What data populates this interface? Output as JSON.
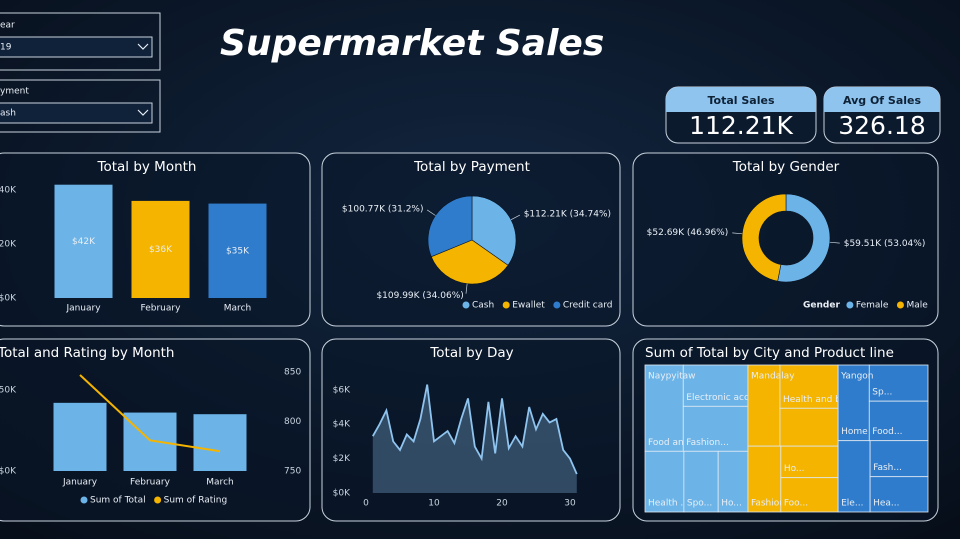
{
  "title": "Supermarket Sales",
  "slicers": [
    {
      "label": "ear",
      "value": "19"
    },
    {
      "label": "yment",
      "value": "ash"
    }
  ],
  "kpis": [
    {
      "label": "Total Sales",
      "value": "112.21K"
    },
    {
      "label": "Avg Of Sales",
      "value": "326.18"
    }
  ],
  "chart_data": [
    {
      "type": "bar",
      "title": "Total by Month",
      "categories": [
        "January",
        "February",
        "March"
      ],
      "values": [
        42000,
        36000,
        35000
      ],
      "value_labels": [
        "$42K",
        "$36K",
        "$35K"
      ],
      "colors": [
        "#6cb4e8",
        "#f4b400",
        "#2f7ccc"
      ],
      "ylim": [
        0,
        43000
      ],
      "yticks": [
        {
          "value": 0,
          "label": "$0K"
        },
        {
          "value": 20000,
          "label": "20K"
        },
        {
          "value": 40000,
          "label": "40K"
        }
      ]
    },
    {
      "type": "pie",
      "title": "Total by Payment",
      "categories": [
        "Cash",
        "Ewallet",
        "Credit card"
      ],
      "values": [
        112210,
        109990,
        100770
      ],
      "value_labels": [
        "$112.21K (34.74%)",
        "$109.99K (34.06%)",
        "$100.77K (31.2%)"
      ],
      "colors": [
        "#6cb4e8",
        "#f4b400",
        "#2f7ccc"
      ]
    },
    {
      "type": "donut",
      "title": "Total by Gender",
      "legend_title": "Gender",
      "categories": [
        "Female",
        "Male"
      ],
      "values": [
        59510,
        52690
      ],
      "value_labels": [
        "$59.51K (53.04%)",
        "$52.69K (46.96%)"
      ],
      "colors": [
        "#6cb4e8",
        "#f4b400"
      ]
    },
    {
      "type": "combo",
      "title": "Total and Rating by Month",
      "categories": [
        "January",
        "February",
        "March"
      ],
      "series": [
        {
          "name": "Sum of Total",
          "kind": "bar",
          "color": "#6cb4e8",
          "values": [
            42000,
            36000,
            35000
          ]
        },
        {
          "name": "Sum of Rating",
          "kind": "line",
          "color": "#f4b400",
          "axis": "y2",
          "values": [
            847,
            781,
            770
          ]
        }
      ],
      "ylim": [
        0,
        61000
      ],
      "yticks": [
        {
          "value": 0,
          "label": "$0K"
        },
        {
          "value": 50000,
          "label": "50K"
        }
      ],
      "y2lim": [
        750,
        850
      ],
      "y2ticks": [
        750,
        800,
        850
      ]
    },
    {
      "type": "area",
      "title": "Total by Day",
      "x": [
        1,
        2,
        3,
        4,
        5,
        6,
        7,
        8,
        9,
        10,
        11,
        12,
        13,
        14,
        15,
        16,
        17,
        18,
        19,
        20,
        21,
        22,
        23,
        24,
        25,
        26,
        27,
        28,
        29,
        30,
        31
      ],
      "values": [
        3300,
        4000,
        4800,
        3000,
        2500,
        3400,
        3000,
        4300,
        6300,
        3000,
        3300,
        3600,
        2900,
        4300,
        5500,
        2700,
        2000,
        5300,
        2300,
        5500,
        2600,
        3300,
        2700,
        5000,
        3700,
        4600,
        4100,
        4300,
        2500,
        2000,
        1100
      ],
      "color": "#8fc4ef",
      "xlim": [
        0,
        31
      ],
      "xticks": [
        0,
        10,
        20,
        30
      ],
      "ylim": [
        0,
        6800
      ],
      "yticks": [
        {
          "value": 0,
          "label": "$0K"
        },
        {
          "value": 2000,
          "label": "$2K"
        },
        {
          "value": 4000,
          "label": "$4K"
        },
        {
          "value": 6000,
          "label": "$6K"
        }
      ]
    },
    {
      "type": "treemap",
      "title": "Sum of Total by City and Product line",
      "groups": [
        {
          "name": "Naypyitaw",
          "color": "#6cb4e8",
          "tiles": [
            {
              "label": "Food and beve...",
              "value": 8400
            },
            {
              "label": "Electronic acce...",
              "value": 6800
            },
            {
              "label": "Fashion...",
              "value": 7400
            },
            {
              "label": "Health ...",
              "value": 6000
            },
            {
              "label": "Spo...",
              "value": 5300
            },
            {
              "label": "Ho...",
              "value": 4600
            }
          ]
        },
        {
          "name": "Mandalay",
          "color": "#f4b400",
          "tiles": [
            {
              "label": null,
              "value": 6600
            },
            {
              "label": "Health and b...",
              "value": 6400
            },
            {
              "label": null,
              "value": 5600
            },
            {
              "label": "Fashion a...",
              "value": 5500
            },
            {
              "label": "Ho...",
              "value": 4600
            },
            {
              "label": "Foo...",
              "value": 5000
            }
          ]
        },
        {
          "name": "Yangon",
          "color": "#2f7ccc",
          "tiles": [
            {
              "label": "Home ...",
              "value": 6000
            },
            {
              "label": "Sp...",
              "value": 5400
            },
            {
              "label": "Food...",
              "value": 5900
            },
            {
              "label": "Ele...",
              "value": 5800
            },
            {
              "label": "Fash...",
              "value": 5300
            },
            {
              "label": "Hea...",
              "value": 5200
            }
          ]
        }
      ]
    }
  ]
}
